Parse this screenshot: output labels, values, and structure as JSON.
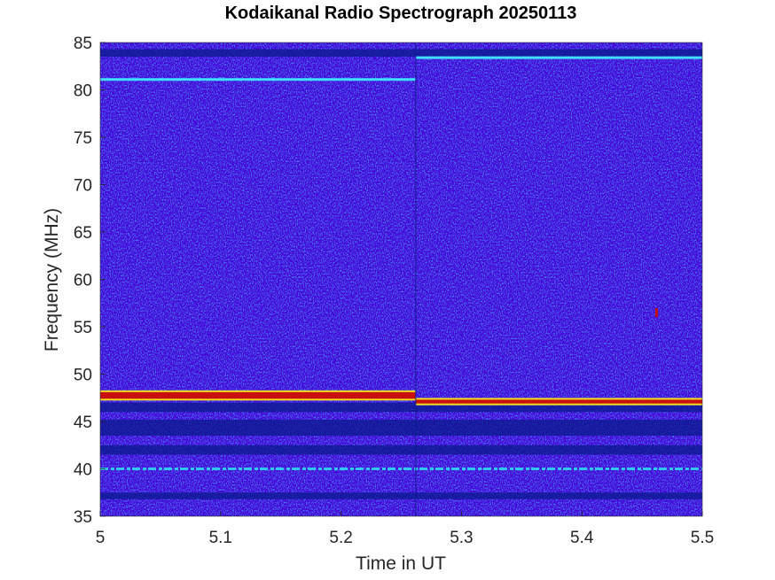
{
  "chart_data": {
    "type": "heatmap",
    "title": "Kodaikanal Radio Spectrograph  20250113",
    "xlabel": "Time in UT",
    "ylabel": "Frequency (MHz)",
    "xlim": [
      5,
      5.5
    ],
    "ylim": [
      35,
      85
    ],
    "xticks": [
      "5",
      "5.1",
      "5.2",
      "5.3",
      "5.4",
      "5.5"
    ],
    "yticks": [
      "35",
      "40",
      "45",
      "50",
      "55",
      "60",
      "65",
      "70",
      "75",
      "80",
      "85"
    ],
    "colormap": "jet",
    "background_level_color": "#1430b8",
    "segment_boundary_time": 5.262,
    "features": [
      {
        "kind": "line",
        "t_start": 5.0,
        "t_end": 5.262,
        "freq": 81.1,
        "color": "#3fe0ff"
      },
      {
        "kind": "line",
        "t_start": 5.262,
        "t_end": 5.5,
        "freq": 83.4,
        "color": "#3fe0ff"
      },
      {
        "kind": "band",
        "t_start": 5.0,
        "t_end": 5.262,
        "freq_start": 47.4,
        "freq_end": 48.1,
        "color": "#c81010"
      },
      {
        "kind": "band",
        "t_start": 5.262,
        "t_end": 5.5,
        "freq_start": 46.9,
        "freq_end": 47.3,
        "color": "#c81010"
      },
      {
        "kind": "dashed_line",
        "t_start": 5.0,
        "t_end": 5.5,
        "freq": 40.0,
        "color": "#30c8f0"
      },
      {
        "kind": "spot",
        "t": 5.462,
        "freq": 56.5,
        "color": "#c01010"
      }
    ],
    "dark_bands": [
      {
        "freq_start": 83.5,
        "freq_end": 84.3
      },
      {
        "freq_start": 46.0,
        "freq_end": 47.0
      },
      {
        "freq_start": 43.5,
        "freq_end": 45.2
      },
      {
        "freq_start": 41.5,
        "freq_end": 42.5
      },
      {
        "freq_start": 36.8,
        "freq_end": 37.5
      }
    ],
    "grid": false,
    "legend": "none"
  }
}
